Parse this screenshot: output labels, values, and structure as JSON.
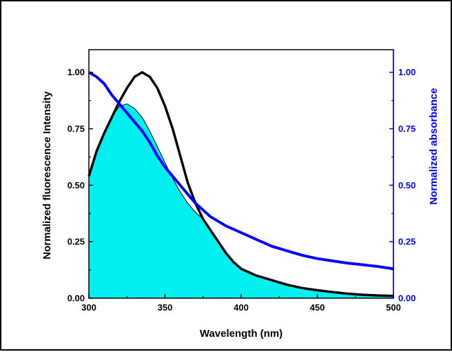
{
  "chart_data": {
    "type": "area",
    "xlabel": "Wavelength (nm)",
    "ylabel_left": "Normalized fluorescence Intensity",
    "ylabel_right": "Normalized absorbance",
    "xlim": [
      300,
      500
    ],
    "ylim": [
      0,
      1.1
    ],
    "xticks": [
      "300",
      "350",
      "400",
      "450",
      "500"
    ],
    "yticks_left": [
      "0.00",
      "0.25",
      "0.50",
      "0.75",
      "1.00"
    ],
    "yticks_right": [
      "0.00",
      "0.25",
      "0.50",
      "0.75",
      "1.00"
    ],
    "x_tick_values": [
      300,
      350,
      400,
      450,
      500
    ],
    "y_tick_values": [
      0,
      0.25,
      0.5,
      0.75,
      1.0
    ],
    "series": [
      {
        "axis": "right",
        "style": "filled-area",
        "fill": "#00f0f0",
        "x": [
          300,
          305,
          310,
          315,
          320,
          325,
          330,
          335,
          340,
          345,
          350,
          355,
          360,
          365,
          370,
          375,
          380,
          385,
          390,
          395,
          400,
          410,
          420,
          430,
          440,
          450,
          460,
          470,
          480,
          490,
          500
        ],
        "values": [
          0.54,
          0.65,
          0.73,
          0.8,
          0.85,
          0.86,
          0.84,
          0.8,
          0.74,
          0.67,
          0.6,
          0.53,
          0.47,
          0.42,
          0.38,
          0.35,
          0.3,
          0.25,
          0.2,
          0.16,
          0.13,
          0.1,
          0.08,
          0.06,
          0.045,
          0.035,
          0.027,
          0.02,
          0.015,
          0.012,
          0.01
        ]
      },
      {
        "axis": "left",
        "style": "line",
        "color": "#000000",
        "x": [
          300,
          305,
          310,
          315,
          320,
          325,
          330,
          335,
          340,
          345,
          350,
          355,
          360,
          365,
          370,
          375,
          380,
          385,
          390,
          395,
          400,
          410,
          420,
          430,
          440,
          450,
          460,
          470,
          480,
          490,
          500
        ],
        "values": [
          0.54,
          0.65,
          0.73,
          0.8,
          0.87,
          0.93,
          0.98,
          1.0,
          0.98,
          0.93,
          0.85,
          0.75,
          0.63,
          0.51,
          0.42,
          0.35,
          0.3,
          0.25,
          0.2,
          0.16,
          0.13,
          0.1,
          0.08,
          0.06,
          0.045,
          0.035,
          0.027,
          0.02,
          0.015,
          0.012,
          0.01
        ]
      },
      {
        "axis": "right",
        "style": "line",
        "color": "#0000ff",
        "x": [
          300,
          305,
          310,
          315,
          320,
          325,
          330,
          335,
          340,
          345,
          350,
          355,
          360,
          365,
          370,
          375,
          380,
          390,
          400,
          410,
          420,
          430,
          440,
          450,
          460,
          470,
          480,
          490,
          500
        ],
        "values": [
          1.0,
          0.98,
          0.95,
          0.9,
          0.86,
          0.82,
          0.78,
          0.74,
          0.69,
          0.63,
          0.58,
          0.54,
          0.5,
          0.46,
          0.42,
          0.39,
          0.36,
          0.32,
          0.29,
          0.26,
          0.23,
          0.21,
          0.19,
          0.175,
          0.165,
          0.155,
          0.148,
          0.14,
          0.13
        ]
      }
    ],
    "colors": {
      "left_axis": "#000000",
      "right_axis": "#0000ff",
      "fill": "#00f0f0"
    }
  }
}
